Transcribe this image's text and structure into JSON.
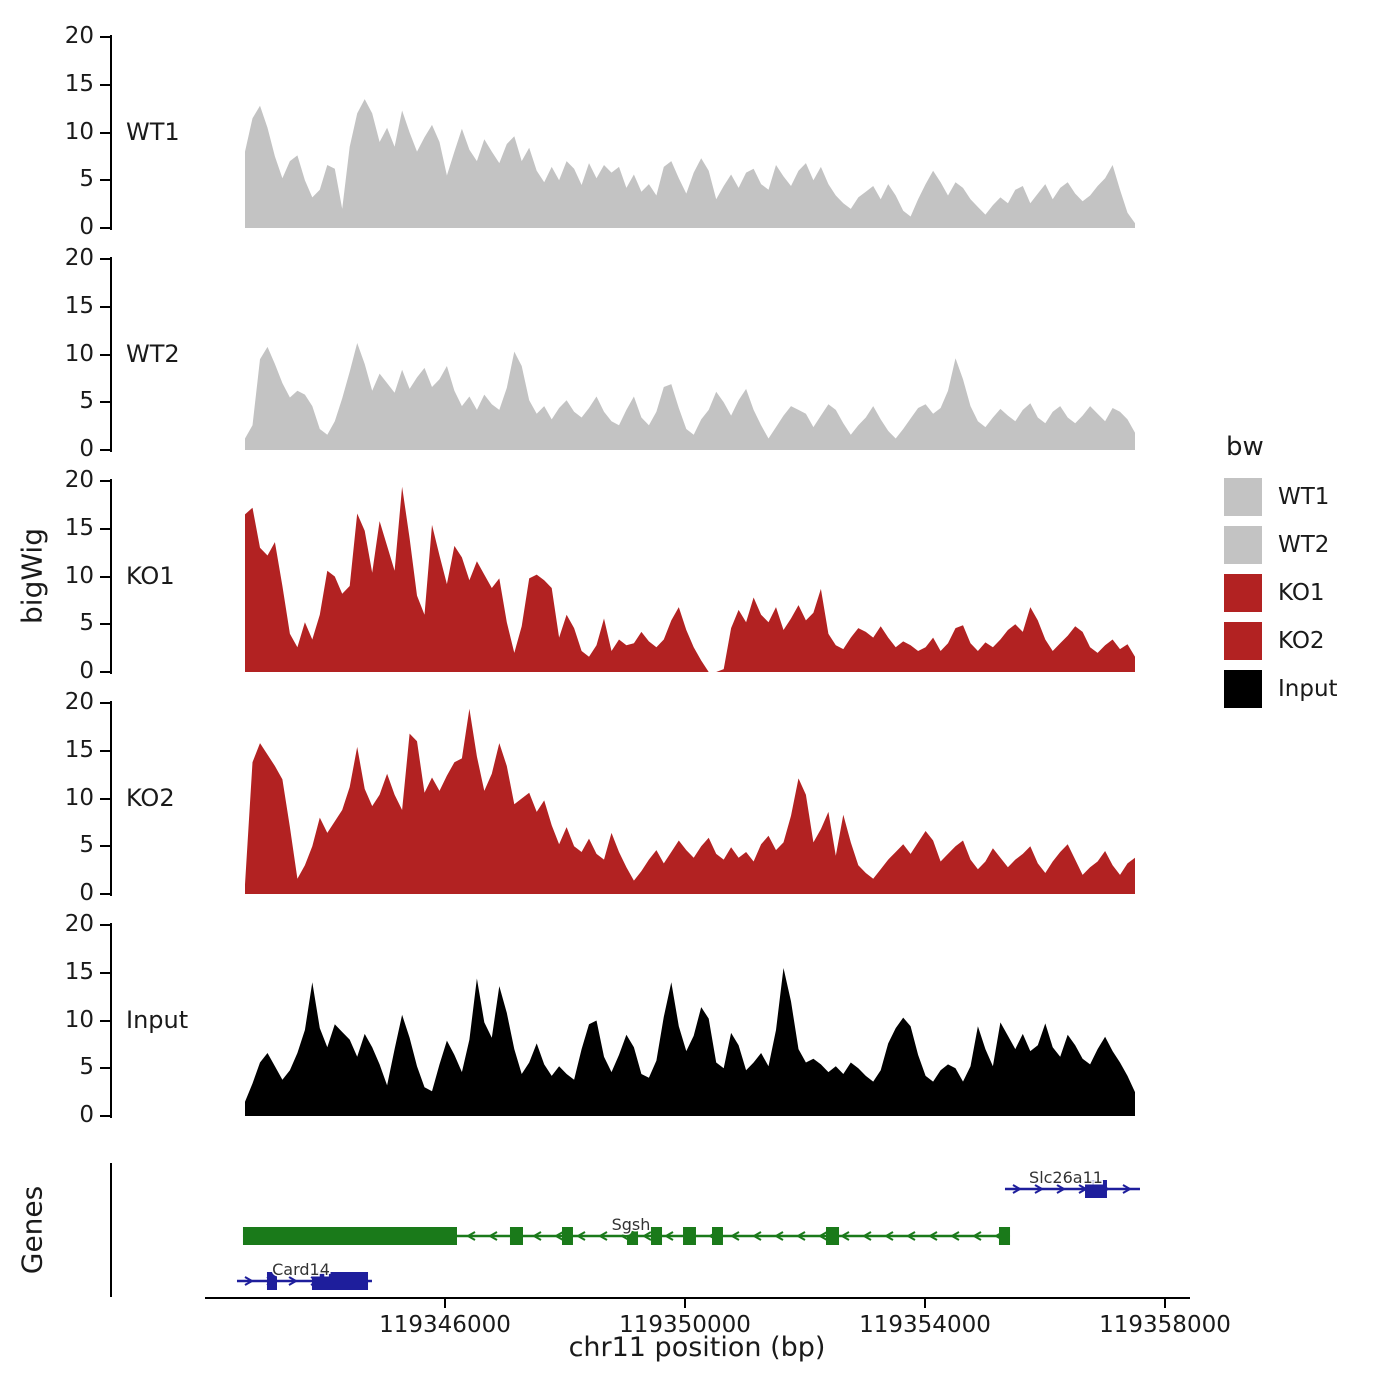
{
  "figure": {
    "y_axis_title": "bigWig",
    "genes_axis_title": "Genes",
    "x_axis_title": "chr11 position (bp)"
  },
  "legend": {
    "title": "bw",
    "entries": [
      {
        "label": "WT1",
        "color": "#c3c3c3"
      },
      {
        "label": "WT2",
        "color": "#c3c3c3"
      },
      {
        "label": "KO1",
        "color": "#b22222"
      },
      {
        "label": "KO2",
        "color": "#b22222"
      },
      {
        "label": "Input",
        "color": "#000000"
      }
    ]
  },
  "chart_data": {
    "type": "area",
    "title": "",
    "xlabel": "chr11 position (bp)",
    "ylabel": "bigWig",
    "ylim": [
      0,
      20
    ],
    "y_ticks": [
      0,
      5,
      10,
      15,
      20
    ],
    "x_ticks": [
      119346000,
      119350000,
      119354000,
      119358000
    ],
    "x_tick_labels": [
      "119346000",
      "119350000",
      "119354000",
      "119358000"
    ],
    "data_range_bp": [
      119342667,
      119357500
    ],
    "tracks": [
      {
        "name": "WT1",
        "color": "#c3c3c3",
        "values": [
          8.0,
          11.5,
          12.8,
          10.5,
          7.5,
          5.2,
          7.0,
          7.6,
          5.0,
          3.2,
          4.0,
          6.6,
          6.2,
          2.0,
          8.5,
          12.0,
          13.5,
          12.0,
          9.0,
          10.5,
          8.5,
          12.3,
          10.0,
          8.0,
          9.5,
          10.8,
          9.0,
          5.5,
          8.0,
          10.4,
          8.2,
          7.0,
          9.3,
          8.0,
          6.8,
          8.8,
          9.6,
          7.0,
          8.4,
          6.0,
          4.8,
          6.4,
          5.0,
          7.0,
          6.2,
          4.5,
          6.8,
          5.2,
          6.6,
          5.8,
          6.4,
          4.2,
          5.6,
          3.8,
          4.6,
          3.4,
          6.4,
          7.0,
          5.2,
          3.6,
          5.8,
          7.3,
          6.0,
          3.0,
          4.4,
          5.6,
          4.2,
          5.8,
          6.2,
          4.6,
          4.0,
          6.6,
          5.4,
          4.4,
          6.0,
          6.8,
          5.0,
          6.4,
          4.6,
          3.4,
          2.6,
          2.0,
          3.2,
          3.8,
          4.4,
          3.0,
          4.6,
          3.4,
          1.8,
          1.2,
          3.0,
          4.6,
          6.0,
          4.8,
          3.4,
          4.8,
          4.2,
          3.0,
          2.2,
          1.4,
          2.4,
          3.2,
          2.6,
          4.0,
          4.4,
          2.6,
          3.6,
          4.6,
          3.0,
          4.2,
          4.8,
          3.6,
          2.8,
          3.4,
          4.4,
          5.2,
          6.6,
          4.0,
          1.6,
          0.5
        ]
      },
      {
        "name": "WT2",
        "color": "#c3c3c3",
        "values": [
          1.2,
          2.6,
          9.5,
          10.8,
          9.0,
          7.0,
          5.5,
          6.2,
          5.8,
          4.6,
          2.2,
          1.6,
          3.0,
          5.4,
          8.2,
          11.2,
          9.0,
          6.2,
          8.0,
          7.0,
          6.0,
          8.4,
          6.4,
          7.6,
          8.6,
          6.6,
          7.4,
          8.8,
          6.2,
          4.6,
          5.6,
          4.2,
          5.8,
          4.8,
          4.2,
          6.5,
          10.3,
          8.8,
          5.2,
          3.8,
          4.6,
          3.2,
          4.4,
          5.2,
          4.0,
          3.4,
          4.4,
          5.6,
          4.0,
          3.0,
          2.6,
          4.2,
          5.6,
          3.4,
          2.6,
          4.0,
          6.6,
          6.9,
          4.4,
          2.2,
          1.6,
          3.2,
          4.2,
          6.1,
          5.0,
          3.6,
          5.2,
          6.4,
          4.2,
          2.6,
          1.2,
          2.4,
          3.6,
          4.6,
          4.2,
          3.8,
          2.4,
          3.6,
          4.8,
          4.2,
          2.8,
          1.6,
          2.6,
          3.4,
          4.6,
          3.2,
          2.0,
          1.2,
          2.2,
          3.3,
          4.4,
          4.8,
          3.8,
          4.4,
          6.2,
          9.6,
          7.4,
          4.6,
          3.0,
          2.4,
          3.4,
          4.3,
          3.6,
          3.0,
          4.2,
          4.9,
          3.4,
          2.8,
          4.0,
          4.6,
          3.4,
          2.8,
          3.6,
          4.6,
          3.8,
          3.0,
          4.4,
          4.0,
          3.2,
          1.8
        ]
      },
      {
        "name": "KO1",
        "color": "#b22222",
        "values": [
          16.5,
          17.2,
          13.0,
          12.2,
          13.6,
          9.0,
          4.0,
          2.6,
          5.2,
          3.4,
          6.0,
          10.6,
          10.0,
          8.2,
          9.0,
          16.6,
          14.8,
          10.4,
          15.8,
          13.2,
          10.6,
          19.4,
          14.0,
          8.0,
          6.0,
          15.4,
          12.2,
          9.2,
          13.2,
          12.0,
          9.6,
          11.6,
          10.2,
          8.8,
          9.8,
          5.2,
          2.0,
          4.8,
          9.8,
          10.2,
          9.6,
          8.8,
          3.6,
          6.0,
          4.6,
          2.2,
          1.6,
          2.8,
          5.6,
          2.2,
          3.4,
          2.8,
          3.0,
          4.2,
          3.2,
          2.6,
          3.4,
          5.4,
          6.8,
          4.4,
          2.6,
          1.2,
          0,
          0,
          0.3,
          4.6,
          6.5,
          5.2,
          7.8,
          6.0,
          5.2,
          6.8,
          4.4,
          5.6,
          7.0,
          5.4,
          6.2,
          8.7,
          4.0,
          2.8,
          2.4,
          3.6,
          4.6,
          4.2,
          3.6,
          4.8,
          3.6,
          2.6,
          3.2,
          2.8,
          2.2,
          2.6,
          3.6,
          2.2,
          3.0,
          4.6,
          4.9,
          3.0,
          2.2,
          3.1,
          2.6,
          3.4,
          4.4,
          5.0,
          4.2,
          6.8,
          5.4,
          3.4,
          2.2,
          3.0,
          3.8,
          4.8,
          4.2,
          2.6,
          2.0,
          2.8,
          3.4,
          2.4,
          2.9,
          1.6
        ]
      },
      {
        "name": "KO2",
        "color": "#b22222",
        "values": [
          1.0,
          13.8,
          15.8,
          14.6,
          13.4,
          12.0,
          7.0,
          1.6,
          3.0,
          5.0,
          8.0,
          6.4,
          7.6,
          8.8,
          11.2,
          15.4,
          11.0,
          9.2,
          10.4,
          12.6,
          10.4,
          8.8,
          16.8,
          16.0,
          10.6,
          12.2,
          10.8,
          12.4,
          13.8,
          14.2,
          19.4,
          14.4,
          10.8,
          12.6,
          15.8,
          13.4,
          9.4,
          10.0,
          10.6,
          8.6,
          9.8,
          7.2,
          5.2,
          7.0,
          5.0,
          4.4,
          5.8,
          4.2,
          3.6,
          6.4,
          4.4,
          2.8,
          1.4,
          2.4,
          3.6,
          4.6,
          3.2,
          4.4,
          5.6,
          4.6,
          3.8,
          5.0,
          5.9,
          4.2,
          3.6,
          4.9,
          3.8,
          4.4,
          3.4,
          5.2,
          6.1,
          4.6,
          5.4,
          8.2,
          12.1,
          10.4,
          5.4,
          6.8,
          8.6,
          4.0,
          8.3,
          5.4,
          3.0,
          2.2,
          1.6,
          2.6,
          3.6,
          4.4,
          5.2,
          4.2,
          5.4,
          6.6,
          5.6,
          3.4,
          4.2,
          5.0,
          5.6,
          3.6,
          2.6,
          3.4,
          4.8,
          3.8,
          2.8,
          3.6,
          4.2,
          5.0,
          3.2,
          2.2,
          3.4,
          4.4,
          5.2,
          3.6,
          2.0,
          2.8,
          3.4,
          4.5,
          3.0,
          2.0,
          3.2,
          3.8
        ]
      },
      {
        "name": "Input",
        "color": "#000000",
        "values": [
          1.5,
          3.4,
          5.6,
          6.6,
          5.2,
          3.8,
          4.8,
          6.6,
          9.0,
          14.0,
          9.2,
          7.2,
          9.6,
          8.8,
          8.0,
          6.2,
          8.6,
          7.2,
          5.4,
          3.2,
          7.0,
          10.6,
          8.2,
          5.2,
          3.0,
          2.6,
          5.4,
          7.9,
          6.4,
          4.6,
          8.0,
          14.4,
          9.8,
          8.2,
          13.6,
          10.8,
          7.0,
          4.4,
          5.6,
          7.6,
          5.4,
          4.2,
          5.2,
          4.4,
          3.8,
          7.0,
          9.6,
          10.0,
          6.2,
          4.6,
          6.4,
          8.5,
          7.2,
          4.4,
          4.0,
          5.8,
          10.4,
          14.0,
          9.4,
          6.8,
          8.4,
          11.4,
          10.2,
          5.6,
          5.0,
          8.7,
          7.4,
          4.8,
          5.6,
          6.6,
          5.2,
          9.0,
          15.5,
          12.0,
          7.0,
          5.6,
          6.0,
          5.4,
          4.6,
          5.2,
          4.4,
          5.6,
          5.0,
          4.2,
          3.6,
          4.8,
          7.6,
          9.2,
          10.3,
          9.4,
          6.4,
          4.2,
          3.6,
          4.8,
          5.4,
          5.0,
          3.6,
          5.2,
          9.4,
          7.0,
          5.2,
          9.8,
          8.4,
          7.0,
          8.6,
          6.8,
          7.4,
          9.7,
          7.2,
          6.2,
          8.5,
          7.4,
          6.0,
          5.4,
          7.0,
          8.3,
          6.8,
          5.6,
          4.2,
          2.5
        ]
      }
    ],
    "genes": [
      {
        "name": "Slc26a11",
        "color": "#1e1e9c",
        "strand": "+",
        "row": 0,
        "start_bp": 119355333,
        "end_bp": 119357583,
        "exons": [
          [
            119356667,
            119357033
          ]
        ],
        "label_bp": 119356350
      },
      {
        "name": "Sgsh",
        "color": "#1a7a1a",
        "strand": "-",
        "row": 1,
        "start_bp": 119342633,
        "end_bp": 119355417,
        "thick_box": [
          119342633,
          119346200
        ],
        "exons": [
          [
            119347083,
            119347300
          ],
          [
            119347950,
            119348133
          ],
          [
            119349033,
            119349217
          ],
          [
            119349433,
            119349617
          ],
          [
            119349967,
            119350183
          ],
          [
            119350450,
            119350633
          ],
          [
            119352350,
            119352567
          ],
          [
            119355233,
            119355417
          ]
        ],
        "label_bp": 119349100
      },
      {
        "name": "Card14",
        "color": "#1e1e9c",
        "strand": "+",
        "row": 2,
        "start_bp": 119342533,
        "end_bp": 119344783,
        "exons": [
          [
            119343033,
            119343200
          ],
          [
            119343783,
            119344717
          ]
        ],
        "label_bp": 119343600
      }
    ]
  }
}
